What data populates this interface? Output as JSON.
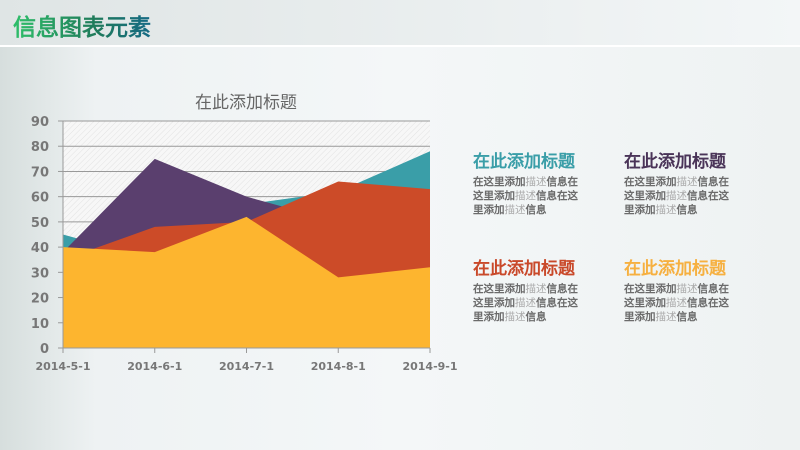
{
  "header": {
    "title": "信息图表元素"
  },
  "chart_data": {
    "type": "area",
    "title": "在此添加标题",
    "categories": [
      "2014-5-1",
      "2014-6-1",
      "2014-7-1",
      "2014-8-1",
      "2014-9-1"
    ],
    "ylim": [
      0,
      90
    ],
    "yticks": [
      0,
      10,
      20,
      30,
      40,
      50,
      60,
      70,
      80,
      90
    ],
    "grid": true,
    "series": [
      {
        "color": "#3a9ea8",
        "values": [
          45,
          35,
          57,
          62,
          78
        ]
      },
      {
        "color": "#5a3f6e",
        "values": [
          38,
          75,
          60,
          50,
          55
        ]
      },
      {
        "color": "#cc4b28",
        "values": [
          35,
          48,
          50,
          66,
          63
        ]
      },
      {
        "color": "#fdb52f",
        "values": [
          40,
          38,
          52,
          28,
          32
        ]
      }
    ]
  },
  "blocks": [
    {
      "title": "在此添加标题",
      "color": "#3a9ea8",
      "desc": [
        "在这里添加",
        "描述",
        "信息在",
        "这里添加",
        "描述",
        "信息在这",
        "里添加",
        "描述",
        "信息"
      ]
    },
    {
      "title": "在此添加标题",
      "color": "#4a3458",
      "desc": [
        "在这里添加",
        "描述",
        "信息在",
        "这里添加",
        "描述",
        "信息在这",
        "里添加",
        "描述",
        "信息"
      ]
    },
    {
      "title": "在此添加标题",
      "color": "#c9492a",
      "desc": [
        "在这里添加",
        "描述",
        "信息在",
        "这里添加",
        "描述",
        "信息在这",
        "里添加",
        "描述",
        "信息"
      ]
    },
    {
      "title": "在此添加标题",
      "color": "#f6b040",
      "desc": [
        "在这里添加",
        "描述",
        "信息在",
        "这里添加",
        "描述",
        "信息在这",
        "里添加",
        "描述",
        "信息"
      ]
    }
  ]
}
